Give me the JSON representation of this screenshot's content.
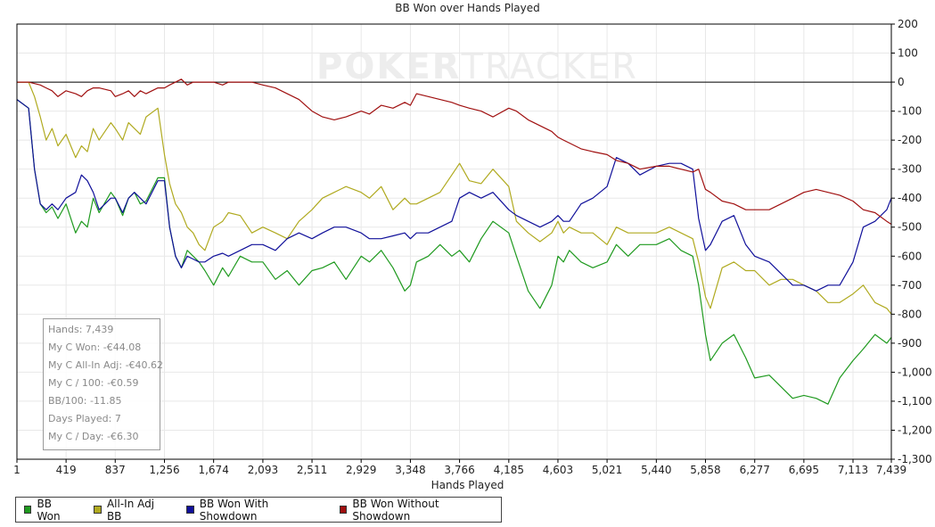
{
  "watermark": {
    "brand_bold": "POKER",
    "brand_light": "TRACKER"
  },
  "stats": [
    "Hands: 7,439",
    "My C Won: -€44.08",
    "My C All-In Adj: -€40.62",
    "My C / 100: -€0.59",
    "BB/100: -11.85",
    "Days Played: 7",
    "My C / Day: -€6.30"
  ],
  "colors": {
    "bb_won": "#1f9a1f",
    "all_in_adj": "#b0aa20",
    "showdown": "#10109a",
    "non_showdown": "#a01010",
    "grid": "#e8e8e8",
    "axis": "#000000"
  },
  "chart_data": {
    "type": "line",
    "title": "BB Won over Hands Played",
    "xlabel": "Hands Played",
    "ylabel": "",
    "xlim": [
      1,
      7439
    ],
    "ylim": [
      -1300,
      200
    ],
    "x_ticks": [
      1,
      419,
      837,
      1256,
      1674,
      2093,
      2511,
      2929,
      3348,
      3766,
      4185,
      4603,
      5021,
      5440,
      5858,
      6277,
      6695,
      7113,
      7439
    ],
    "x_tick_labels": [
      "1",
      "419",
      "837",
      "1,256",
      "1,674",
      "2,093",
      "2,511",
      "2,929",
      "3,348",
      "3,766",
      "4,185",
      "4,603",
      "5,021",
      "5,440",
      "5,858",
      "6,277",
      "6,695",
      "7,113",
      "7,439"
    ],
    "y_ticks": [
      200,
      100,
      0,
      -100,
      -200,
      -300,
      -400,
      -500,
      -600,
      -700,
      -800,
      -900,
      -1000,
      -1100,
      -1200,
      -1300
    ],
    "y_tick_labels": [
      "200",
      "100",
      "0",
      "-100",
      "-200",
      "-300",
      "-400",
      "-500",
      "-600",
      "-700",
      "-800",
      "-900",
      "-1,000",
      "-1,100",
      "-1,200",
      "-1,300"
    ],
    "grid": true,
    "legend_position": "bottom-left",
    "series": [
      {
        "name": "BB Won",
        "color": "#1f9a1f",
        "x": [
          1,
          100,
          150,
          200,
          250,
          300,
          350,
          419,
          500,
          550,
          600,
          650,
          700,
          800,
          837,
          900,
          950,
          1000,
          1050,
          1100,
          1200,
          1256,
          1300,
          1350,
          1400,
          1450,
          1500,
          1550,
          1600,
          1674,
          1750,
          1800,
          1900,
          2000,
          2093,
          2200,
          2300,
          2400,
          2511,
          2600,
          2700,
          2800,
          2929,
          3000,
          3100,
          3200,
          3300,
          3348,
          3400,
          3500,
          3600,
          3700,
          3766,
          3850,
          3950,
          4050,
          4185,
          4250,
          4350,
          4450,
          4550,
          4603,
          4650,
          4700,
          4800,
          4900,
          5021,
          5100,
          5200,
          5300,
          5440,
          5550,
          5650,
          5750,
          5800,
          5858,
          5900,
          6000,
          6100,
          6200,
          6277,
          6400,
          6500,
          6600,
          6695,
          6800,
          6900,
          7000,
          7113,
          7200,
          7300,
          7400,
          7439
        ],
        "y": [
          -60,
          -90,
          -300,
          -420,
          -450,
          -430,
          -470,
          -420,
          -520,
          -480,
          -500,
          -400,
          -450,
          -380,
          -400,
          -460,
          -400,
          -380,
          -420,
          -410,
          -330,
          -330,
          -500,
          -600,
          -640,
          -580,
          -600,
          -620,
          -650,
          -700,
          -640,
          -670,
          -600,
          -620,
          -620,
          -680,
          -650,
          -700,
          -650,
          -640,
          -620,
          -680,
          -600,
          -620,
          -580,
          -640,
          -720,
          -700,
          -620,
          -600,
          -560,
          -600,
          -580,
          -620,
          -540,
          -480,
          -520,
          -600,
          -720,
          -780,
          -700,
          -600,
          -620,
          -580,
          -620,
          -640,
          -620,
          -560,
          -600,
          -560,
          -560,
          -540,
          -580,
          -600,
          -700,
          -870,
          -960,
          -900,
          -870,
          -950,
          -1020,
          -1010,
          -1050,
          -1090,
          -1080,
          -1090,
          -1110,
          -1020,
          -960,
          -920,
          -870,
          -900,
          -880
        ]
      },
      {
        "name": "All-In Adj BB",
        "color": "#b0aa20",
        "x": [
          1,
          100,
          150,
          200,
          250,
          300,
          350,
          419,
          500,
          550,
          600,
          650,
          700,
          800,
          837,
          900,
          950,
          1000,
          1050,
          1100,
          1200,
          1256,
          1300,
          1350,
          1400,
          1450,
          1500,
          1550,
          1600,
          1674,
          1750,
          1800,
          1900,
          2000,
          2093,
          2200,
          2300,
          2400,
          2511,
          2600,
          2700,
          2800,
          2929,
          3000,
          3100,
          3200,
          3300,
          3348,
          3400,
          3500,
          3600,
          3700,
          3766,
          3850,
          3950,
          4050,
          4185,
          4250,
          4350,
          4450,
          4550,
          4603,
          4650,
          4700,
          4800,
          4900,
          5021,
          5100,
          5200,
          5300,
          5440,
          5550,
          5650,
          5750,
          5800,
          5858,
          5900,
          6000,
          6100,
          6200,
          6277,
          6400,
          6500,
          6600,
          6695,
          6800,
          6900,
          7000,
          7113,
          7200,
          7300,
          7400,
          7439
        ],
        "y": [
          0,
          0,
          -50,
          -120,
          -200,
          -160,
          -220,
          -180,
          -260,
          -220,
          -240,
          -160,
          -200,
          -140,
          -160,
          -200,
          -140,
          -160,
          -180,
          -120,
          -90,
          -250,
          -350,
          -420,
          -450,
          -500,
          -520,
          -560,
          -580,
          -500,
          -480,
          -450,
          -460,
          -520,
          -500,
          -520,
          -540,
          -480,
          -440,
          -400,
          -380,
          -360,
          -380,
          -400,
          -360,
          -440,
          -400,
          -420,
          -420,
          -400,
          -380,
          -320,
          -280,
          -340,
          -350,
          -300,
          -360,
          -480,
          -520,
          -550,
          -520,
          -480,
          -520,
          -500,
          -520,
          -520,
          -560,
          -500,
          -520,
          -520,
          -520,
          -500,
          -520,
          -540,
          -620,
          -740,
          -780,
          -640,
          -620,
          -650,
          -650,
          -700,
          -680,
          -680,
          -700,
          -720,
          -760,
          -760,
          -730,
          -700,
          -760,
          -780,
          -800
        ]
      },
      {
        "name": "BB Won With Showdown",
        "color": "#10109a",
        "x": [
          1,
          100,
          150,
          200,
          250,
          300,
          350,
          419,
          500,
          550,
          600,
          650,
          700,
          800,
          837,
          900,
          950,
          1000,
          1050,
          1100,
          1200,
          1256,
          1300,
          1350,
          1400,
          1450,
          1500,
          1550,
          1600,
          1674,
          1750,
          1800,
          1900,
          2000,
          2093,
          2200,
          2300,
          2400,
          2511,
          2600,
          2700,
          2800,
          2929,
          3000,
          3100,
          3200,
          3300,
          3348,
          3400,
          3500,
          3600,
          3700,
          3766,
          3850,
          3950,
          4050,
          4185,
          4250,
          4350,
          4450,
          4550,
          4603,
          4650,
          4700,
          4800,
          4900,
          5021,
          5100,
          5200,
          5300,
          5440,
          5550,
          5650,
          5750,
          5800,
          5858,
          5900,
          6000,
          6100,
          6200,
          6277,
          6400,
          6500,
          6600,
          6695,
          6800,
          6900,
          7000,
          7113,
          7200,
          7300,
          7400,
          7439
        ],
        "y": [
          -60,
          -90,
          -300,
          -420,
          -440,
          -420,
          -440,
          -400,
          -380,
          -320,
          -340,
          -380,
          -440,
          -400,
          -400,
          -450,
          -400,
          -380,
          -400,
          -420,
          -340,
          -340,
          -500,
          -600,
          -640,
          -600,
          -610,
          -620,
          -620,
          -600,
          -590,
          -600,
          -580,
          -560,
          -560,
          -580,
          -540,
          -520,
          -540,
          -520,
          -500,
          -500,
          -520,
          -540,
          -540,
          -530,
          -520,
          -540,
          -520,
          -520,
          -500,
          -480,
          -400,
          -380,
          -400,
          -380,
          -440,
          -460,
          -480,
          -500,
          -480,
          -460,
          -480,
          -480,
          -420,
          -400,
          -360,
          -260,
          -280,
          -320,
          -290,
          -280,
          -280,
          -300,
          -470,
          -580,
          -560,
          -480,
          -460,
          -560,
          -600,
          -620,
          -660,
          -700,
          -700,
          -720,
          -700,
          -700,
          -620,
          -500,
          -480,
          -440,
          -400
        ]
      },
      {
        "name": "BB Won Without Showdown",
        "color": "#a01010",
        "x": [
          1,
          100,
          150,
          200,
          250,
          300,
          350,
          419,
          500,
          550,
          600,
          650,
          700,
          800,
          837,
          900,
          950,
          1000,
          1050,
          1100,
          1200,
          1256,
          1300,
          1350,
          1400,
          1450,
          1500,
          1550,
          1600,
          1674,
          1750,
          1800,
          1900,
          2000,
          2093,
          2200,
          2300,
          2400,
          2511,
          2600,
          2700,
          2800,
          2929,
          3000,
          3100,
          3200,
          3300,
          3348,
          3400,
          3500,
          3600,
          3700,
          3766,
          3850,
          3950,
          4050,
          4185,
          4250,
          4350,
          4450,
          4550,
          4603,
          4650,
          4700,
          4800,
          4900,
          5021,
          5100,
          5200,
          5300,
          5440,
          5550,
          5650,
          5750,
          5800,
          5858,
          5900,
          6000,
          6100,
          6200,
          6277,
          6400,
          6500,
          6600,
          6695,
          6800,
          6900,
          7000,
          7113,
          7200,
          7300,
          7400,
          7439
        ],
        "y": [
          0,
          0,
          -5,
          -10,
          -20,
          -30,
          -50,
          -30,
          -40,
          -50,
          -30,
          -20,
          -20,
          -30,
          -50,
          -40,
          -30,
          -50,
          -30,
          -40,
          -20,
          -20,
          -10,
          0,
          10,
          -10,
          0,
          0,
          0,
          0,
          -10,
          0,
          0,
          0,
          -10,
          -20,
          -40,
          -60,
          -100,
          -120,
          -130,
          -120,
          -100,
          -110,
          -80,
          -90,
          -70,
          -80,
          -40,
          -50,
          -60,
          -70,
          -80,
          -90,
          -100,
          -120,
          -90,
          -100,
          -130,
          -150,
          -170,
          -190,
          -200,
          -210,
          -230,
          -240,
          -250,
          -270,
          -280,
          -300,
          -290,
          -290,
          -300,
          -310,
          -300,
          -370,
          -380,
          -410,
          -420,
          -440,
          -440,
          -440,
          -420,
          -400,
          -380,
          -370,
          -380,
          -390,
          -410,
          -440,
          -450,
          -480,
          -490
        ]
      }
    ]
  }
}
